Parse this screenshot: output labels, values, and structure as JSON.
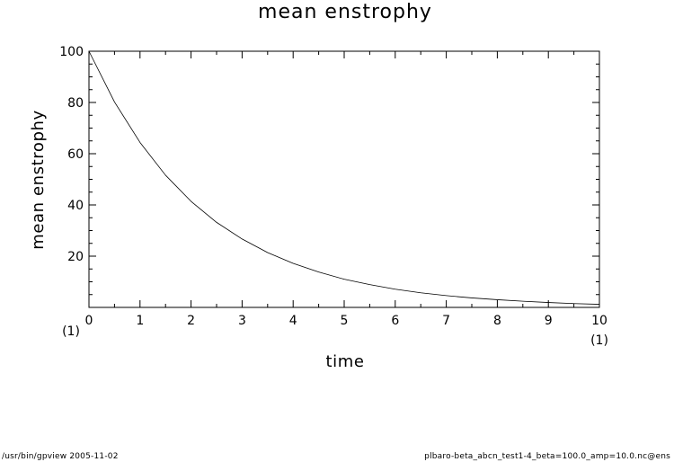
{
  "chart_data": {
    "type": "line",
    "title": "mean enstrophy",
    "xlabel": "time",
    "ylabel": "mean enstrophy",
    "x_multiplier_left": "(1)",
    "x_multiplier_right": "(1)",
    "xlim": [
      0,
      10
    ],
    "ylim": [
      0,
      100
    ],
    "xticks": [
      0,
      1,
      2,
      3,
      4,
      5,
      6,
      7,
      8,
      9,
      10
    ],
    "yticks": [
      20,
      40,
      60,
      80,
      100
    ],
    "grid": false,
    "series": [
      {
        "color": "#000000",
        "x": [
          0,
          0.5,
          1,
          1.5,
          2,
          2.5,
          3,
          3.5,
          4,
          4.5,
          5,
          5.5,
          6,
          6.5,
          7,
          7.5,
          8,
          8.5,
          9,
          9.5,
          10
        ],
        "y": [
          100,
          80.2,
          64.4,
          51.6,
          41.4,
          33.2,
          26.7,
          21.4,
          17.2,
          13.8,
          11.0,
          8.9,
          7.1,
          5.7,
          4.6,
          3.7,
          3.0,
          2.4,
          1.9,
          1.5,
          1.2
        ]
      }
    ]
  },
  "footer": {
    "left": "/usr/bin/gpview   2005-11-02",
    "right": "plbaro-beta_abcn_test1-4_beta=100.0_amp=10.0.nc@ens"
  }
}
